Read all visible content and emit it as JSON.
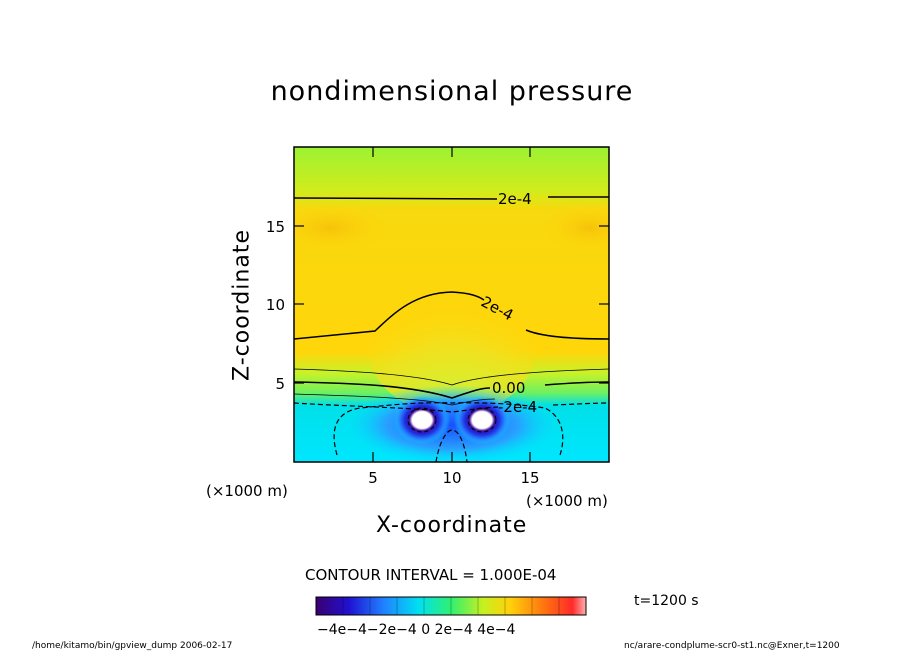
{
  "chart_data": {
    "type": "contour",
    "title": "nondimensional pressure",
    "xlabel": "X-coordinate",
    "ylabel": "Z-coordinate",
    "x_unit": "(×1000 m)",
    "y_unit": "(×1000 m)",
    "xlim": [
      0,
      20
    ],
    "ylim": [
      0,
      20
    ],
    "x_ticks": [
      5,
      10,
      15
    ],
    "y_ticks": [
      5,
      10,
      15
    ],
    "contour_interval_text": "CONTOUR INTERVAL = 1.000E-04",
    "contour_labels": [
      "2e-4",
      "2e-4",
      "0.00",
      "-2e-4"
    ],
    "colorbar": {
      "range": [
        -0.0005,
        0.0005
      ],
      "tick_text": "−4e−4−2e−4   0    2e−4  4e−4"
    },
    "colors": {
      "bg_green": "#9ef53c",
      "yellow": "#ffd30a",
      "cyan": "#00e6ff",
      "blue": "#2b63ff",
      "center_green": "#c8f035"
    }
  },
  "annotations": {
    "time": "t=1200 s",
    "footer_left": "/home/kitamo/bin/gpview_dump  2006-02-17",
    "footer_right": "nc/arare-condplume-scr0-st1.nc@Exner,t=1200"
  }
}
